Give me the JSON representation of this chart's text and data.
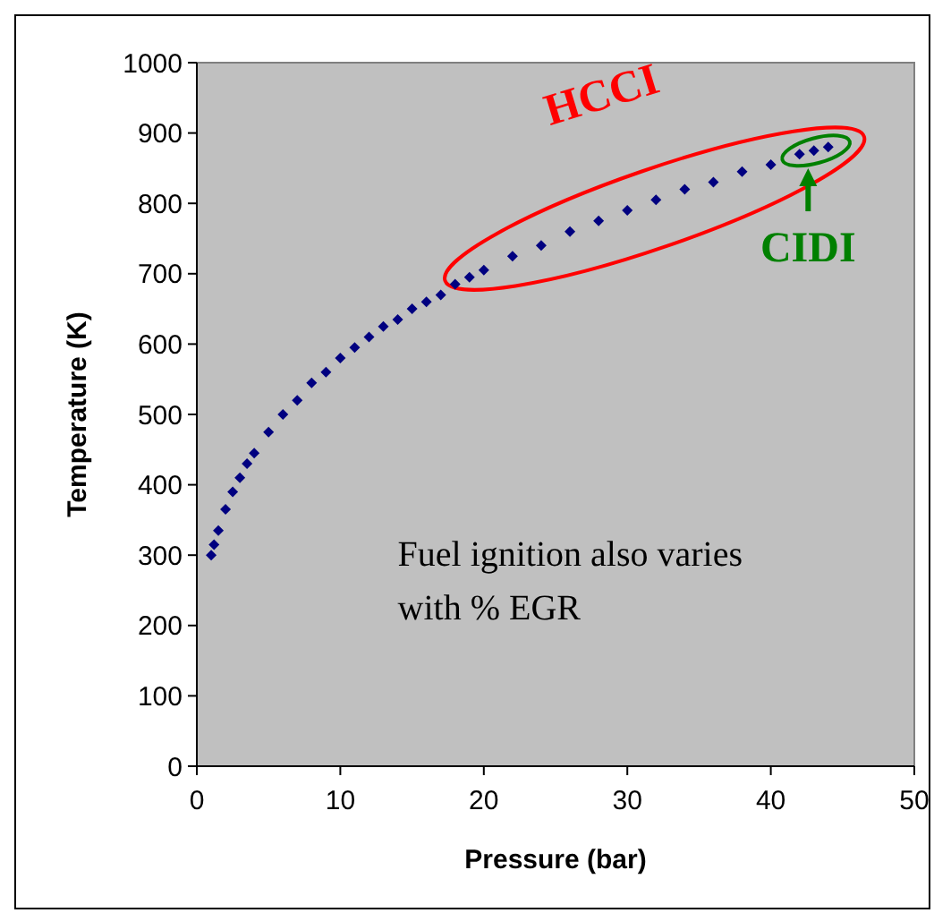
{
  "chart_data": {
    "type": "scatter",
    "xlabel": "Pressure (bar)",
    "ylabel": "Temperature (K)",
    "xlim": [
      0,
      50
    ],
    "xticks": [
      0,
      10,
      20,
      30,
      40,
      50
    ],
    "ylim": [
      0,
      1000
    ],
    "yticks": [
      0,
      100,
      200,
      300,
      400,
      500,
      600,
      700,
      800,
      900,
      1000
    ],
    "marker": "diamond",
    "grid": false,
    "series": [
      {
        "color": "#000080",
        "x": [
          1,
          1.2,
          1.5,
          2,
          2.5,
          3,
          3.5,
          4,
          5,
          6,
          7,
          8,
          9,
          10,
          11,
          12,
          13,
          14,
          15,
          16,
          17,
          18,
          19,
          20,
          22,
          24,
          26,
          28,
          30,
          32,
          34,
          36,
          38,
          40,
          42,
          43,
          44
        ],
        "values": [
          300,
          315,
          335,
          365,
          390,
          410,
          430,
          445,
          475,
          500,
          520,
          545,
          560,
          580,
          595,
          610,
          625,
          635,
          650,
          660,
          670,
          685,
          695,
          705,
          725,
          740,
          760,
          775,
          790,
          805,
          820,
          830,
          845,
          855,
          870,
          875,
          880
        ]
      }
    ],
    "annotations": [
      "HCCI",
      "CIDI",
      "Fuel ignition also varies with % EGR"
    ]
  }
}
